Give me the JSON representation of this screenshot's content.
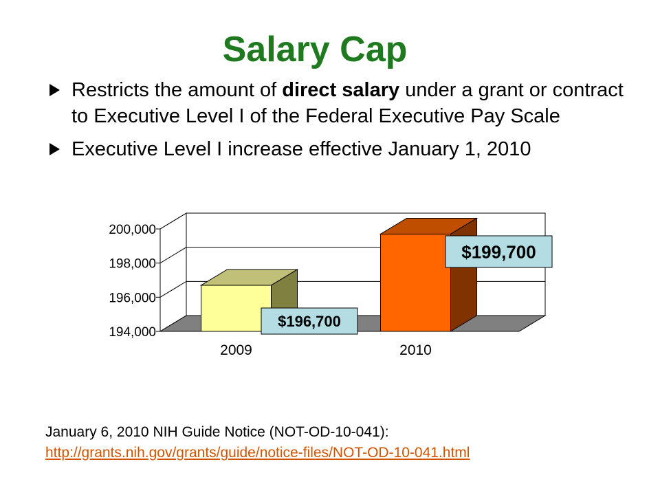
{
  "slide": {
    "title": "Salary Cap",
    "bullets": [
      {
        "text_before": "Restricts the amount of ",
        "text_bold": "direct salary",
        "text_after": " under a grant or contract to Executive Level I of the Federal Executive Pay Scale"
      },
      {
        "text_before": "Executive Level I increase effective January 1, 2010",
        "text_bold": "",
        "text_after": ""
      }
    ],
    "footer_text": "January 6, 2010 NIH Guide Notice (NOT-OD-10-041):",
    "footer_link": "http://grants.nih.gov/grants/guide/notice-files/NOT-OD-10-041.html"
  },
  "chart_data": {
    "type": "bar",
    "categories": [
      "2009",
      "2010"
    ],
    "values": [
      196700,
      199700
    ],
    "data_labels": [
      "$196,700",
      "$199,700"
    ],
    "ylim": [
      194000,
      200000
    ],
    "yticks": [
      194000,
      196000,
      198000,
      200000
    ],
    "ytick_labels": [
      "194,000",
      "196,000",
      "198,000",
      "200,000"
    ],
    "grid": true,
    "colors": {
      "bar_2009_front": "#ffff99",
      "bar_2009_top": "#c0c078",
      "bar_2009_side": "#808040",
      "bar_2010_front": "#ff6600",
      "bar_2010_top": "#c04e00",
      "bar_2010_side": "#803300",
      "floor": "#808080",
      "label_box": "#b3dde3"
    }
  }
}
